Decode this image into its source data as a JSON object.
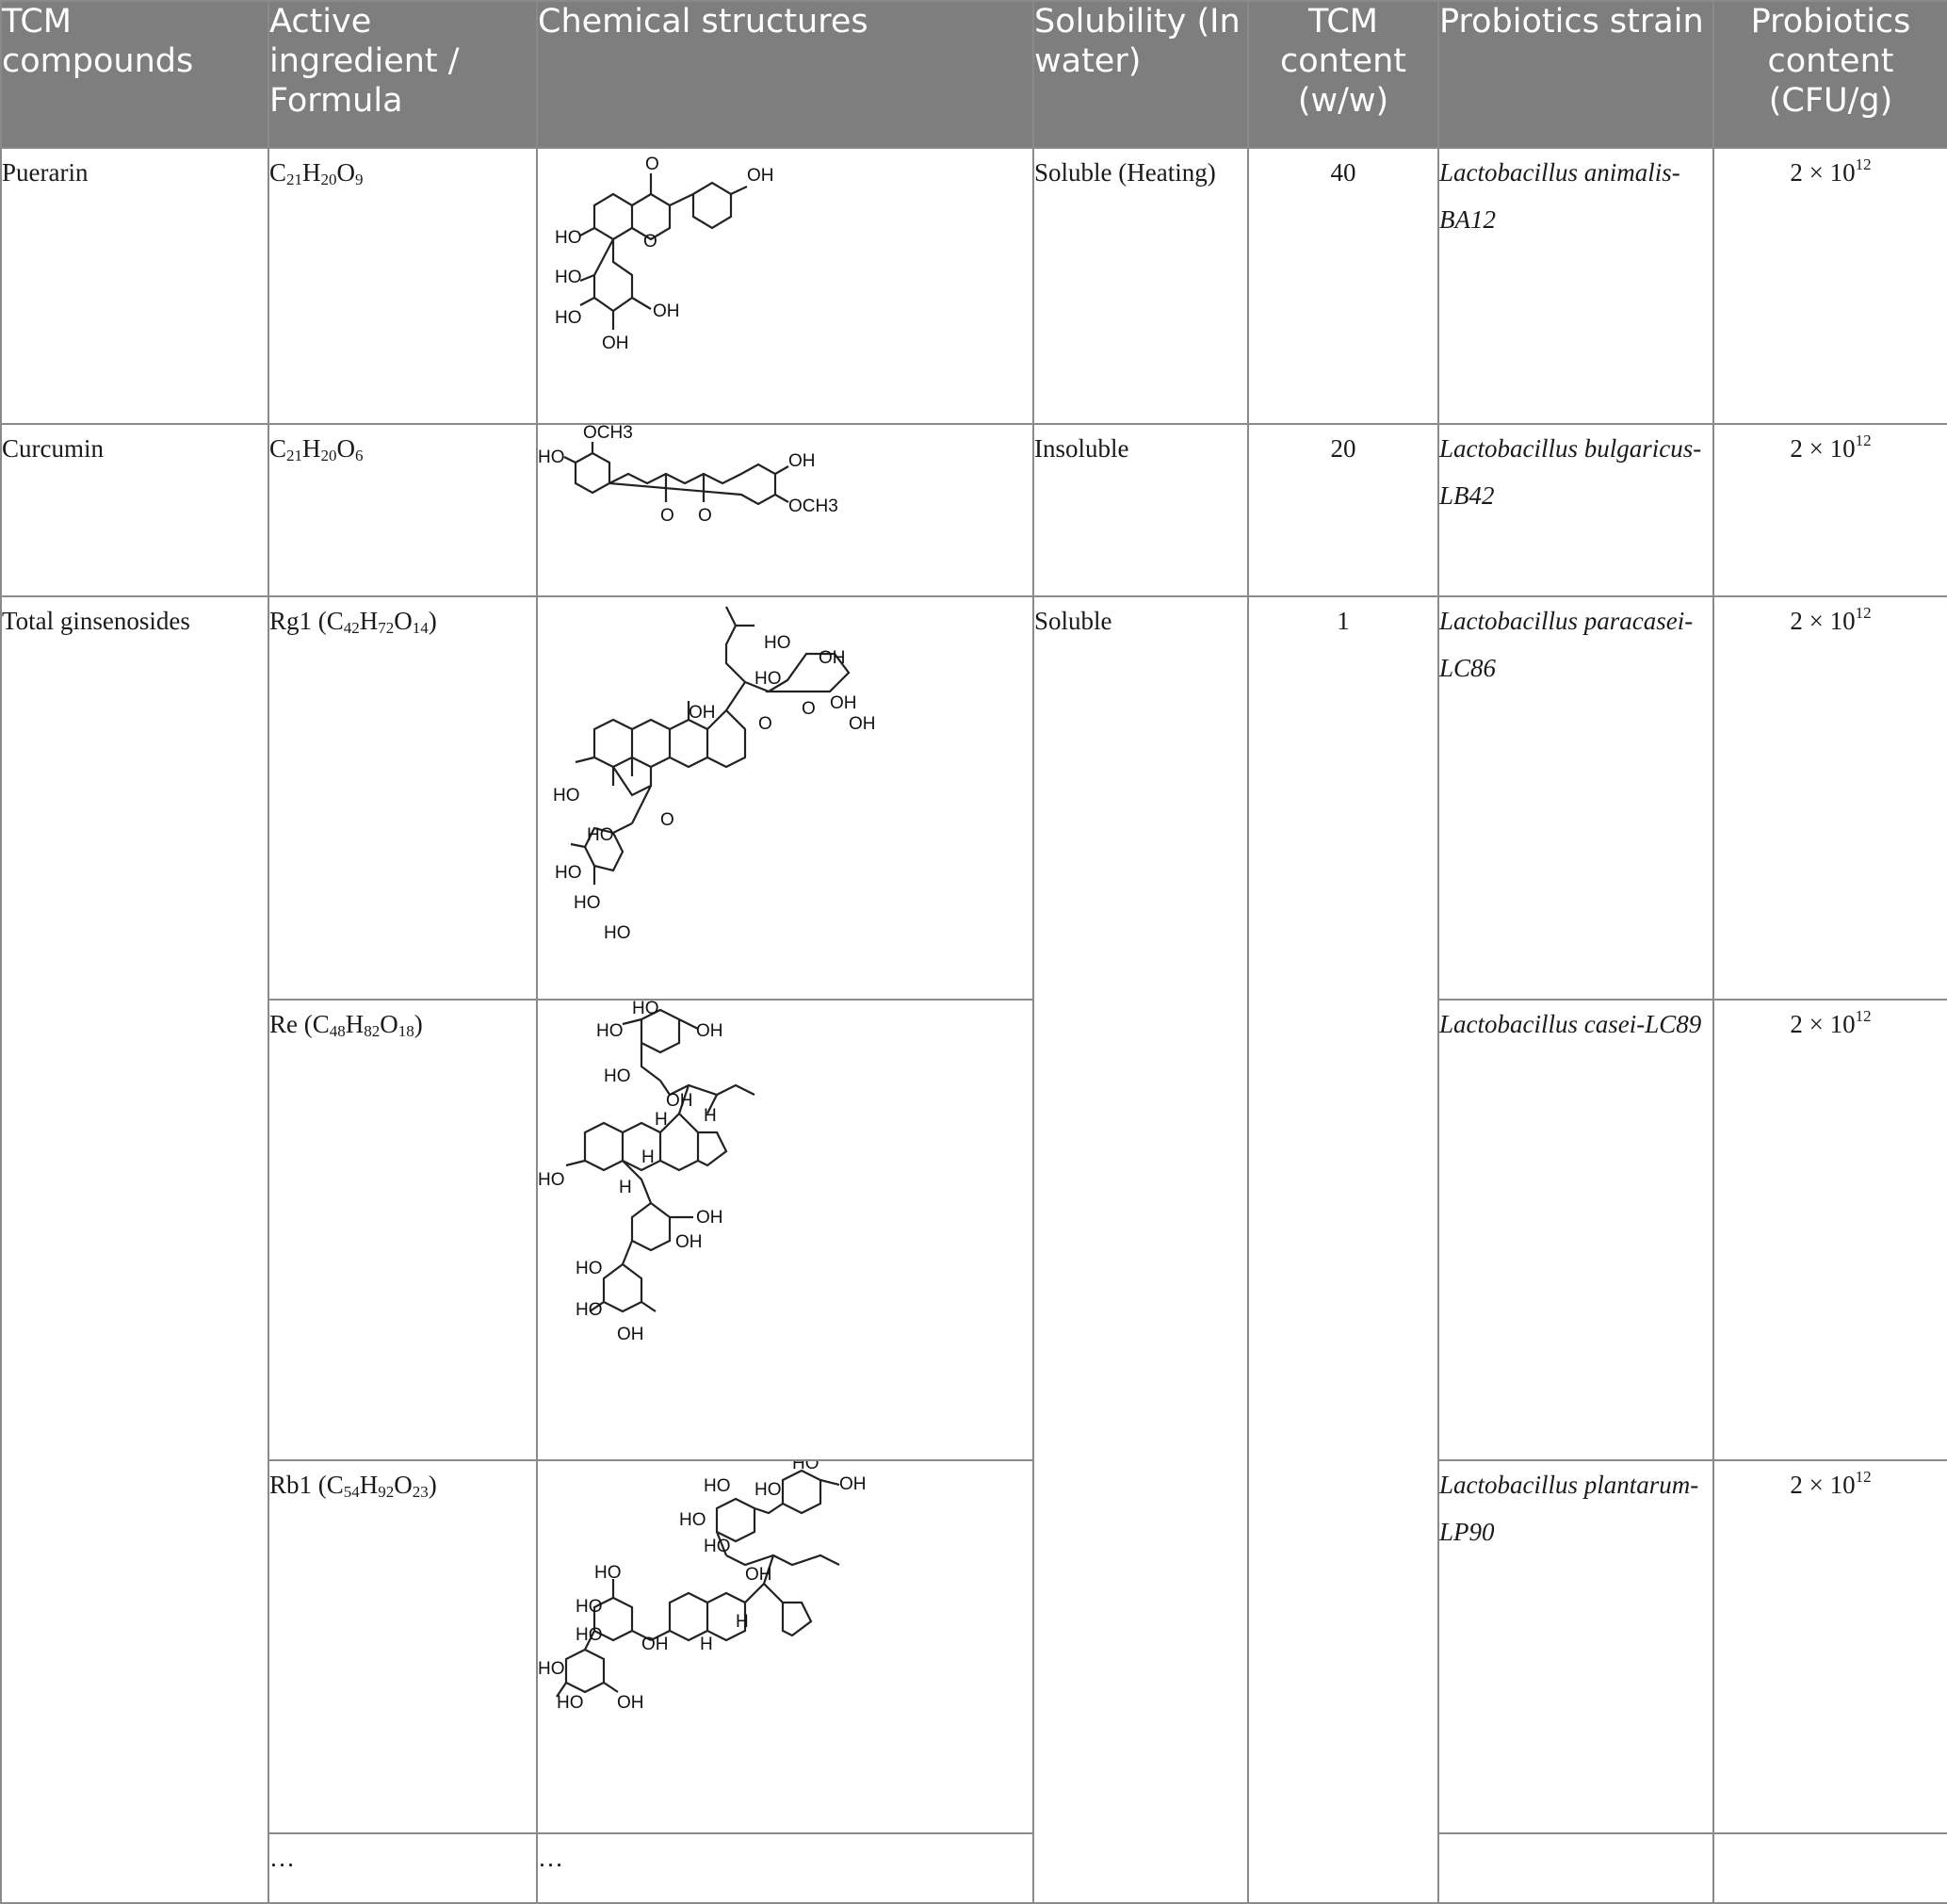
{
  "headers": {
    "tcm_compounds": "TCM compounds",
    "active_ingredient": "Active ingredient / Formula",
    "chemical_structures": "Chemical structures",
    "solubility": "Solubility (In water)",
    "tcm_content": "TCM content (w/w)",
    "probiotics_strain": "Probiotics strain",
    "probiotics_content": "Probiotics content (CFU/g)"
  },
  "rows": [
    {
      "compound": "Puerarin",
      "formula": {
        "prefix": "",
        "parts": [
          [
            "C",
            "21"
          ],
          [
            "H",
            "20"
          ],
          [
            "O",
            "9"
          ]
        ],
        "suffix": ""
      },
      "solubility": "Soluble (Heating)",
      "content": "40",
      "strain": "Lactobacillus animalis-BA12",
      "cfu": {
        "base": "2 × 10",
        "exp": "12"
      }
    },
    {
      "compound": "Curcumin",
      "formula": {
        "prefix": "",
        "parts": [
          [
            "C",
            "21"
          ],
          [
            "H",
            "20"
          ],
          [
            "O",
            "6"
          ]
        ],
        "suffix": ""
      },
      "solubility": "Insoluble",
      "content": "20",
      "strain": "Lactobacillus bulgaricus-LB42",
      "cfu": {
        "base": "2 × 10",
        "exp": "12"
      }
    },
    {
      "compound": "Total ginsenosides",
      "formula": {
        "prefix": "Rg1 (",
        "parts": [
          [
            "C",
            "42"
          ],
          [
            "H",
            "72"
          ],
          [
            "O",
            "14"
          ]
        ],
        "suffix": ")"
      },
      "solubility": "Soluble",
      "content": "1",
      "strain": "Lactobacillus paracasei-LC86",
      "cfu": {
        "base": "2 × 10",
        "exp": "12"
      }
    },
    {
      "formula": {
        "prefix": "Re (",
        "parts": [
          [
            "C",
            "48"
          ],
          [
            "H",
            "82"
          ],
          [
            "O",
            "18"
          ]
        ],
        "suffix": ")"
      },
      "strain": "Lactobacillus casei-LC89",
      "cfu": {
        "base": "2 × 10",
        "exp": "12"
      }
    },
    {
      "formula": {
        "prefix": "Rb1 (",
        "parts": [
          [
            "C",
            "54"
          ],
          [
            "H",
            "92"
          ],
          [
            "O",
            "23"
          ]
        ],
        "suffix": ")"
      },
      "strain": "Lactobacillus plantarum-LP90",
      "cfu": {
        "base": "2 × 10",
        "exp": "12"
      }
    },
    {
      "formula_text": "…",
      "structure_text": "…"
    }
  ],
  "structure_labels": {
    "puerarin": [
      "O",
      "OH",
      "HO",
      "O",
      "HO",
      "HO",
      "OH",
      "OH"
    ],
    "curcumin": [
      "OCH3",
      "HO",
      "OH",
      "OCH3",
      "O",
      "O"
    ],
    "rg1": [
      "HO",
      "OH",
      "HO",
      "OH",
      "O",
      "O",
      "OH",
      "OH",
      "HO",
      "O",
      "HO",
      "HO",
      "HO",
      "HO"
    ],
    "re": [
      "HO",
      "HO",
      "OH",
      "HO",
      "OH",
      "H",
      "H",
      "H",
      "HO",
      "H",
      "OH",
      "OH",
      "HO",
      "HO",
      "OH"
    ],
    "rb1": [
      "HO",
      "HO",
      "OH",
      "HO",
      "HO",
      "HO",
      "OH",
      "H",
      "H",
      "HO",
      "HO",
      "HO",
      "OH",
      "HO",
      "HO",
      "OH"
    ]
  }
}
